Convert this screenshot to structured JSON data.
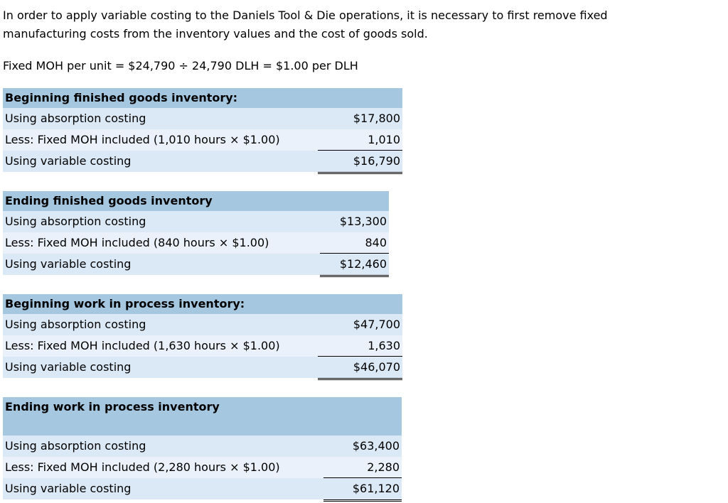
{
  "intro": {
    "line1": "In order to apply variable costing to the Daniels Tool & Die operations, it is necessary to first remove fixed",
    "line2": "manufacturing costs from the inventory values and the cost of goods sold.",
    "formula": "Fixed MOH per unit = $24,790 ÷ 24,790 DLH = $1.00 per DLH"
  },
  "colors": {
    "header_bg": "#a6c7e0",
    "row_light_bg": "#dbe8f6",
    "row_lighter_bg": "#eaf1fb",
    "text": "#000000",
    "page_bg": "#ffffff"
  },
  "tables": [
    {
      "title": "Beginning finished goods inventory:",
      "rows": [
        {
          "label": "Using absorption costing",
          "amount": "$17,800"
        },
        {
          "label": "Less: Fixed MOH included (1,010 hours × $1.00)",
          "amount": "1,010"
        },
        {
          "label": "Using variable costing",
          "amount": "$16,790"
        }
      ]
    },
    {
      "title": "Ending finished goods inventory",
      "rows": [
        {
          "label": "Using absorption costing",
          "amount": "$13,300"
        },
        {
          "label": "Less: Fixed MOH included (840 hours × $1.00)",
          "amount": "840"
        },
        {
          "label": "Using variable costing",
          "amount": "$12,460"
        }
      ]
    },
    {
      "title": "Beginning work in process inventory:",
      "rows": [
        {
          "label": "Using absorption costing",
          "amount": "$47,700"
        },
        {
          "label": "Less: Fixed MOH included (1,630 hours × $1.00)",
          "amount": "1,630"
        },
        {
          "label": "Using variable costing",
          "amount": "$46,070"
        }
      ]
    },
    {
      "title": "Ending work in process inventory",
      "rows": [
        {
          "label": "Using absorption costing",
          "amount": "$63,400"
        },
        {
          "label": "Less: Fixed MOH included (2,280 hours × $1.00)",
          "amount": "2,280"
        },
        {
          "label": "Using variable costing",
          "amount": "$61,120"
        }
      ]
    }
  ]
}
